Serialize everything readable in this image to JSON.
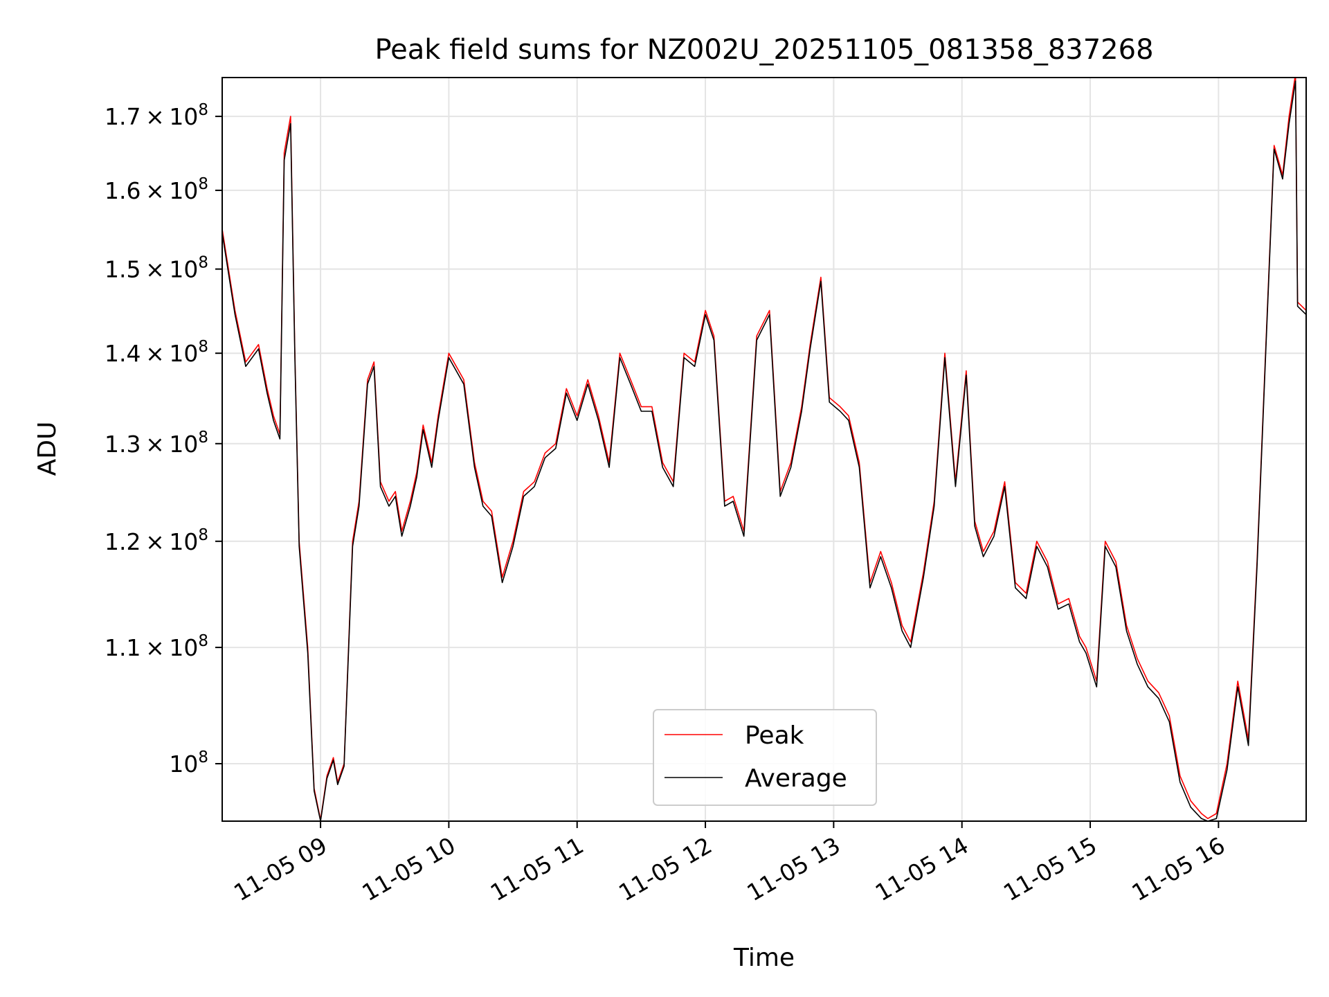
{
  "chart_data": {
    "type": "line",
    "title": "Peak field sums for NZ002U_20251105_081358_837268",
    "xlabel": "Time",
    "ylabel": "ADU",
    "y_scale": "log",
    "ylim": [
      95400000,
      175500000
    ],
    "xlim": [
      "2025-11-05 08:14",
      "2025-11-05 16:41"
    ],
    "grid": true,
    "legend_position": "lower center",
    "x_ticks": [
      {
        "t": "2025-11-05 09:00",
        "label": "11-05 09"
      },
      {
        "t": "2025-11-05 10:00",
        "label": "11-05 10"
      },
      {
        "t": "2025-11-05 11:00",
        "label": "11-05 11"
      },
      {
        "t": "2025-11-05 12:00",
        "label": "11-05 12"
      },
      {
        "t": "2025-11-05 13:00",
        "label": "11-05 13"
      },
      {
        "t": "2025-11-05 14:00",
        "label": "11-05 14"
      },
      {
        "t": "2025-11-05 15:00",
        "label": "11-05 15"
      },
      {
        "t": "2025-11-05 16:00",
        "label": "11-05 16"
      }
    ],
    "y_ticks": [
      {
        "v": 100000000,
        "mant": "",
        "exp": "8"
      },
      {
        "v": 110000000,
        "mant": "1.1",
        "exp": "8"
      },
      {
        "v": 120000000,
        "mant": "1.2",
        "exp": "8"
      },
      {
        "v": 130000000,
        "mant": "1.3",
        "exp": "8"
      },
      {
        "v": 140000000,
        "mant": "1.4",
        "exp": "8"
      },
      {
        "v": 150000000,
        "mant": "1.5",
        "exp": "8"
      },
      {
        "v": 160000000,
        "mant": "1.6",
        "exp": "8"
      },
      {
        "v": 170000000,
        "mant": "1.7",
        "exp": "8"
      }
    ],
    "x": [
      "2025-11-05 08:14",
      "2025-11-05 08:20",
      "2025-11-05 08:25",
      "2025-11-05 08:31",
      "2025-11-05 08:35",
      "2025-11-05 08:38",
      "2025-11-05 08:41",
      "2025-11-05 08:43",
      "2025-11-05 08:46",
      "2025-11-05 08:48",
      "2025-11-05 08:50",
      "2025-11-05 08:54",
      "2025-11-05 08:57",
      "2025-11-05 09:00",
      "2025-11-05 09:03",
      "2025-11-05 09:06",
      "2025-11-05 09:08",
      "2025-11-05 09:11",
      "2025-11-05 09:15",
      "2025-11-05 09:18",
      "2025-11-05 09:22",
      "2025-11-05 09:25",
      "2025-11-05 09:28",
      "2025-11-05 09:32",
      "2025-11-05 09:35",
      "2025-11-05 09:38",
      "2025-11-05 09:42",
      "2025-11-05 09:45",
      "2025-11-05 09:48",
      "2025-11-05 09:52",
      "2025-11-05 09:55",
      "2025-11-05 10:00",
      "2025-11-05 10:07",
      "2025-11-05 10:12",
      "2025-11-05 10:16",
      "2025-11-05 10:20",
      "2025-11-05 10:25",
      "2025-11-05 10:30",
      "2025-11-05 10:35",
      "2025-11-05 10:40",
      "2025-11-05 10:45",
      "2025-11-05 10:50",
      "2025-11-05 10:55",
      "2025-11-05 11:00",
      "2025-11-05 11:05",
      "2025-11-05 11:10",
      "2025-11-05 11:15",
      "2025-11-05 11:20",
      "2025-11-05 11:25",
      "2025-11-05 11:30",
      "2025-11-05 11:35",
      "2025-11-05 11:40",
      "2025-11-05 11:45",
      "2025-11-05 11:50",
      "2025-11-05 11:55",
      "2025-11-05 12:00",
      "2025-11-05 12:04",
      "2025-11-05 12:09",
      "2025-11-05 12:13",
      "2025-11-05 12:18",
      "2025-11-05 12:24",
      "2025-11-05 12:30",
      "2025-11-05 12:35",
      "2025-11-05 12:40",
      "2025-11-05 12:45",
      "2025-11-05 12:49",
      "2025-11-05 12:54",
      "2025-11-05 12:58",
      "2025-11-05 13:03",
      "2025-11-05 13:07",
      "2025-11-05 13:12",
      "2025-11-05 13:17",
      "2025-11-05 13:22",
      "2025-11-05 13:27",
      "2025-11-05 13:32",
      "2025-11-05 13:36",
      "2025-11-05 13:42",
      "2025-11-05 13:47",
      "2025-11-05 13:52",
      "2025-11-05 13:57",
      "2025-11-05 14:02",
      "2025-11-05 14:06",
      "2025-11-05 14:10",
      "2025-11-05 14:15",
      "2025-11-05 14:20",
      "2025-11-05 14:25",
      "2025-11-05 14:30",
      "2025-11-05 14:35",
      "2025-11-05 14:40",
      "2025-11-05 14:45",
      "2025-11-05 14:50",
      "2025-11-05 14:55",
      "2025-11-05 14:58",
      "2025-11-05 15:03",
      "2025-11-05 15:07",
      "2025-11-05 15:12",
      "2025-11-05 15:17",
      "2025-11-05 15:22",
      "2025-11-05 15:27",
      "2025-11-05 15:32",
      "2025-11-05 15:37",
      "2025-11-05 15:42",
      "2025-11-05 15:47",
      "2025-11-05 15:52",
      "2025-11-05 15:55",
      "2025-11-05 15:59",
      "2025-11-05 16:04",
      "2025-11-05 16:09",
      "2025-11-05 16:14",
      "2025-11-05 16:18",
      "2025-11-05 16:22",
      "2025-11-05 16:26",
      "2025-11-05 16:30",
      "2025-11-05 16:33",
      "2025-11-05 16:36",
      "2025-11-05 16:37",
      "2025-11-05 16:41"
    ],
    "series": [
      {
        "name": "Peak",
        "color": "#ff0000",
        "values": [
          155000000,
          145000000,
          139000000,
          141000000,
          136000000,
          133000000,
          131000000,
          165000000,
          170000000,
          140000000,
          120000000,
          110000000,
          98000000,
          95500000,
          99000000,
          100500000,
          98500000,
          100000000,
          120000000,
          124000000,
          137000000,
          139000000,
          126000000,
          124000000,
          125000000,
          121000000,
          124000000,
          127000000,
          132000000,
          128000000,
          133000000,
          140000000,
          137000000,
          128000000,
          124000000,
          123000000,
          116500000,
          120000000,
          125000000,
          126000000,
          129000000,
          130000000,
          136000000,
          133000000,
          137000000,
          133000000,
          128000000,
          140000000,
          137000000,
          134000000,
          134000000,
          128000000,
          126000000,
          140000000,
          139000000,
          145000000,
          142000000,
          124000000,
          124500000,
          121000000,
          142000000,
          145000000,
          125000000,
          128000000,
          134000000,
          141000000,
          149000000,
          135000000,
          134000000,
          133000000,
          128000000,
          116000000,
          119000000,
          116000000,
          112000000,
          110500000,
          117000000,
          124000000,
          140000000,
          126000000,
          138000000,
          122000000,
          119000000,
          121000000,
          126000000,
          116000000,
          115000000,
          120000000,
          118000000,
          114000000,
          114500000,
          111000000,
          110000000,
          107000000,
          120000000,
          118000000,
          112000000,
          109000000,
          107000000,
          106000000,
          104000000,
          99000000,
          97000000,
          96000000,
          95600000,
          96000000,
          100000000,
          107000000,
          102000000,
          118000000,
          140000000,
          166000000,
          162000000,
          170000000,
          176000000,
          146000000,
          145000000
        ]
      },
      {
        "name": "Average",
        "color": "#000000",
        "values": [
          154500000,
          144500000,
          138500000,
          140500000,
          135500000,
          132500000,
          130500000,
          164000000,
          169000000,
          139500000,
          119500000,
          109500000,
          97800000,
          95400000,
          98800000,
          100300000,
          98300000,
          99800000,
          119500000,
          123500000,
          136500000,
          138500000,
          125500000,
          123500000,
          124500000,
          120500000,
          123500000,
          126500000,
          131500000,
          127500000,
          132500000,
          139500000,
          136500000,
          127500000,
          123500000,
          122500000,
          116000000,
          119500000,
          124500000,
          125500000,
          128500000,
          129500000,
          135500000,
          132500000,
          136500000,
          132500000,
          127500000,
          139500000,
          136500000,
          133500000,
          133500000,
          127500000,
          125500000,
          139500000,
          138500000,
          144500000,
          141500000,
          123500000,
          124000000,
          120500000,
          141500000,
          144500000,
          124500000,
          127500000,
          133500000,
          140500000,
          148500000,
          134500000,
          133500000,
          132500000,
          127500000,
          115500000,
          118500000,
          115500000,
          111500000,
          110000000,
          116500000,
          123500000,
          139500000,
          125500000,
          137500000,
          121500000,
          118500000,
          120500000,
          125500000,
          115500000,
          114500000,
          119500000,
          117500000,
          113500000,
          114000000,
          110500000,
          109500000,
          106500000,
          119500000,
          117500000,
          111500000,
          108500000,
          106500000,
          105500000,
          103500000,
          98500000,
          96500000,
          95600000,
          95400000,
          95600000,
          99500000,
          106500000,
          101500000,
          117500000,
          139500000,
          165500000,
          161500000,
          169000000,
          175000000,
          145500000,
          144500000
        ]
      }
    ]
  }
}
